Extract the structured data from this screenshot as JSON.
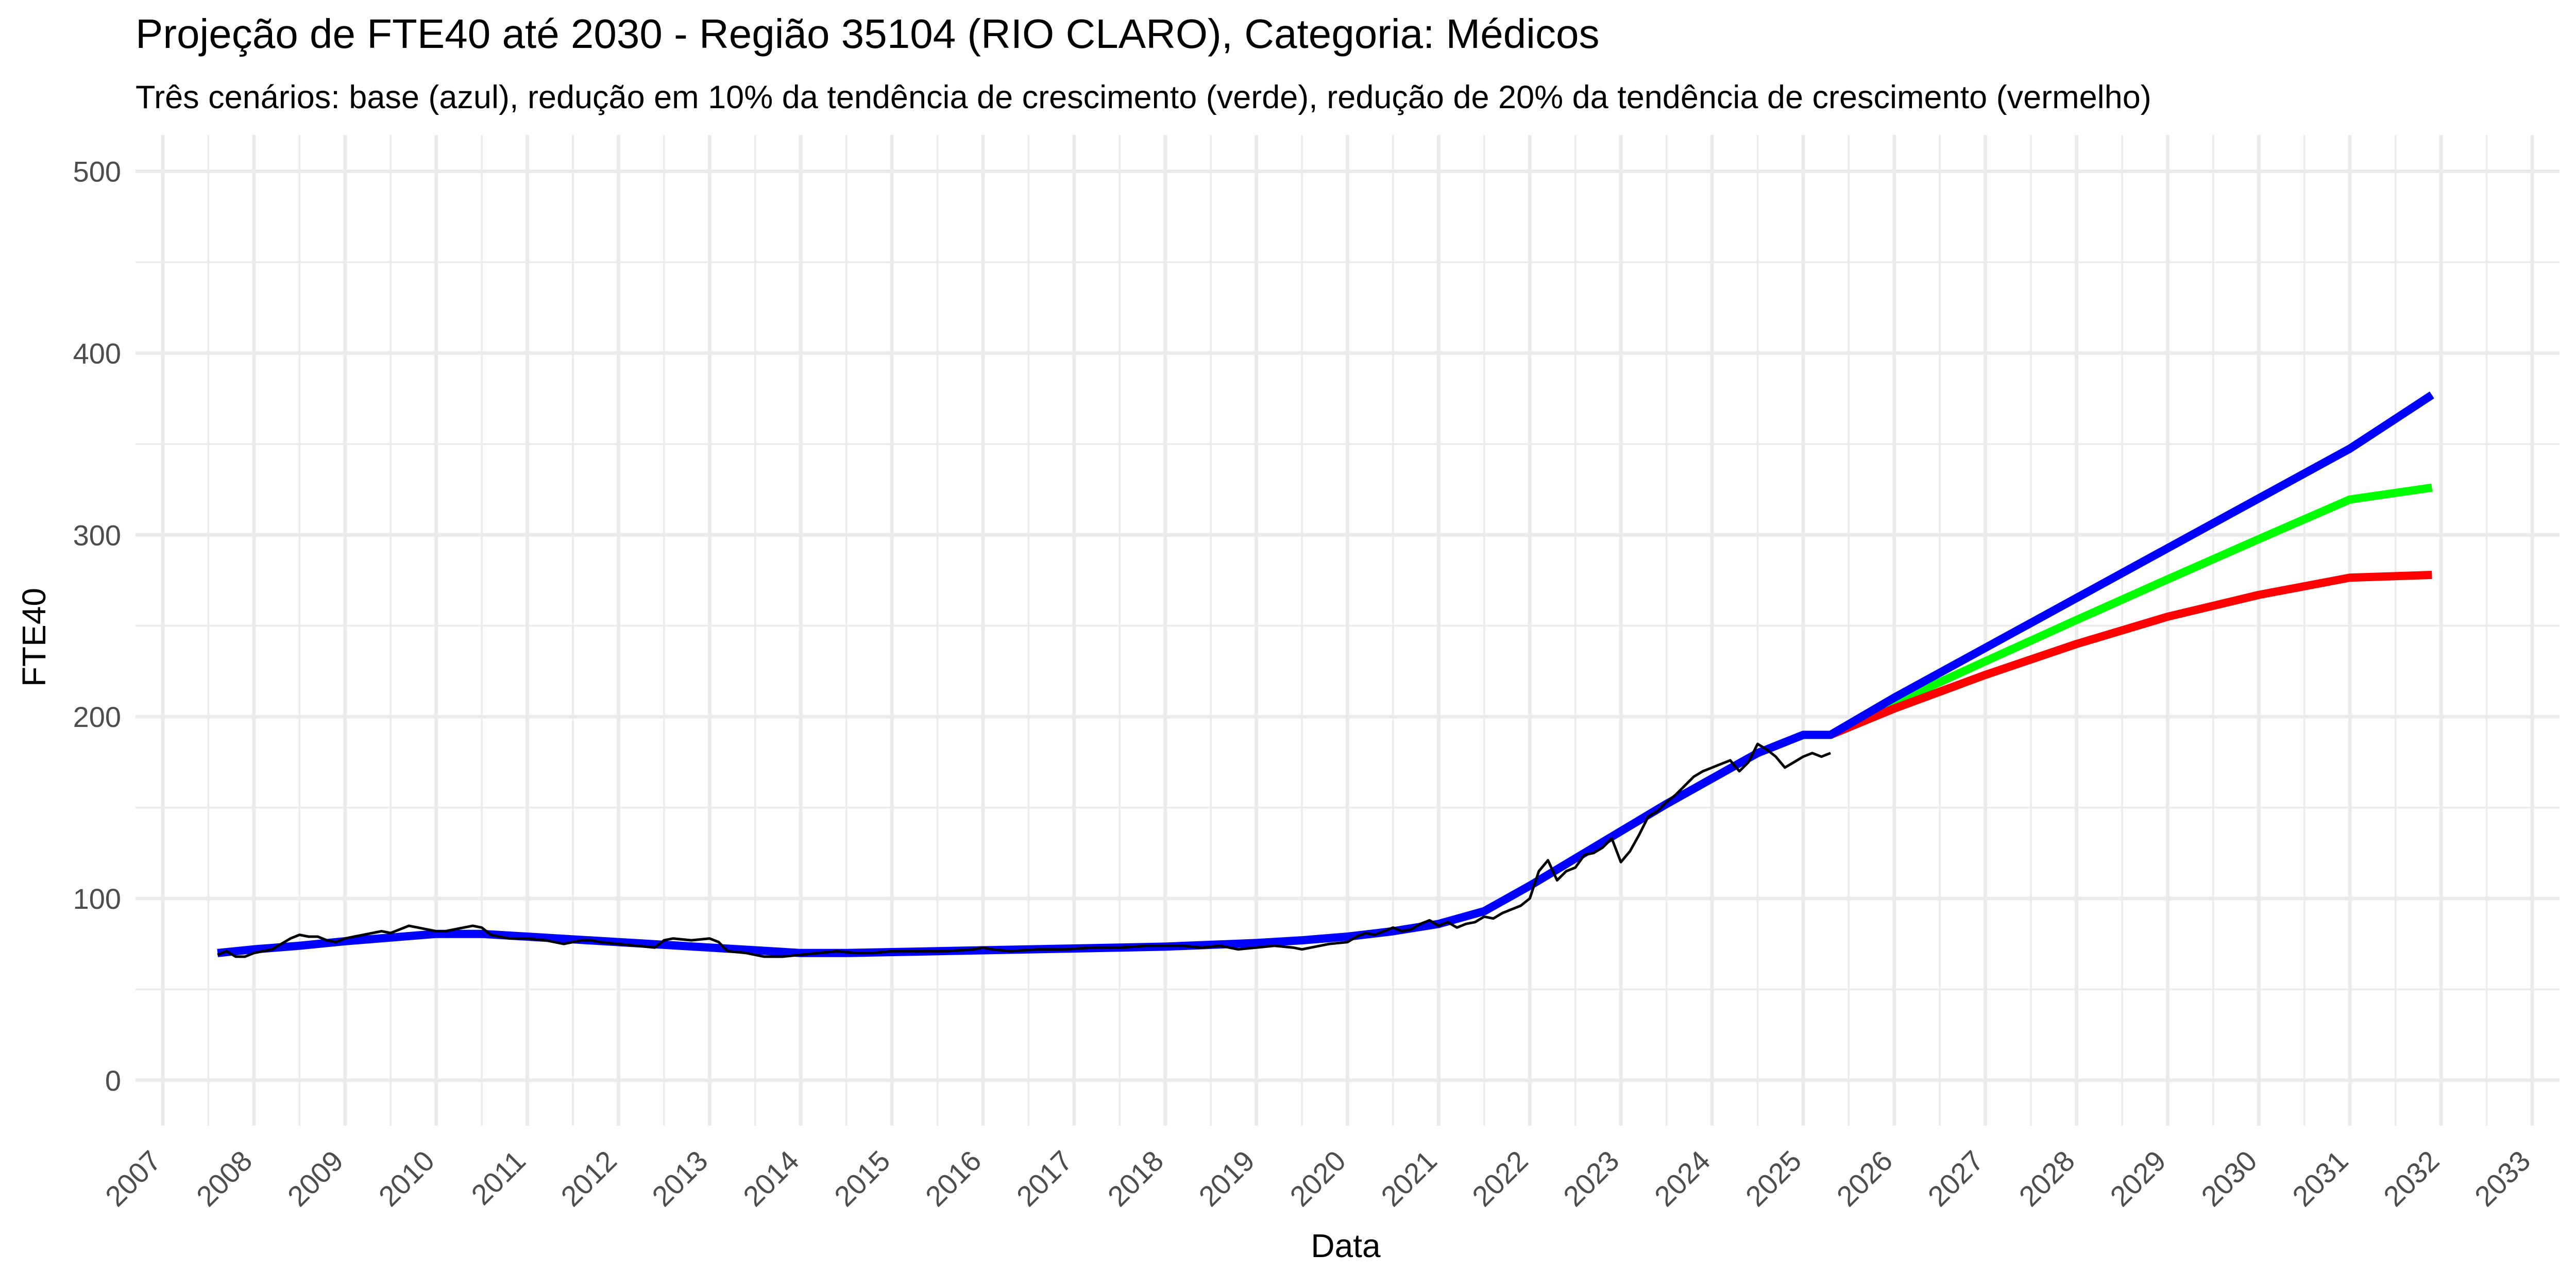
{
  "chart_data": {
    "type": "line",
    "title": "Projeção de FTE40 até 2030 - Região 35104 (RIO CLARO), Categoria: Médicos",
    "subtitle": "Três cenários: base (azul), redução em 10% da tendência de crescimento (verde), redução de 20% da tendência de crescimento (vermelho)",
    "xlabel": "Data",
    "ylabel": "FTE40",
    "xlim": [
      2006.7,
      2033.3
    ],
    "ylim": [
      -25,
      520
    ],
    "grid": true,
    "legend": "none",
    "x_ticks": [
      "2007",
      "2008",
      "2009",
      "2010",
      "2011",
      "2012",
      "2013",
      "2014",
      "2015",
      "2016",
      "2017",
      "2018",
      "2019",
      "2020",
      "2021",
      "2022",
      "2023",
      "2024",
      "2025",
      "2026",
      "2027",
      "2028",
      "2029",
      "2030",
      "2031",
      "2032",
      "2033"
    ],
    "y_ticks": [
      0,
      100,
      200,
      300,
      400,
      500
    ],
    "colors": {
      "observed": "#000000",
      "base": "#0000ff",
      "green": "#00ff00",
      "red": "#ff0000",
      "grid": "#ebebeb",
      "tick_text": "#4d4d4d"
    },
    "series": [
      {
        "x": [
          2007.6,
          2007.7,
          2007.8,
          2007.9,
          2008.0,
          2008.1,
          2008.2,
          2008.3,
          2008.4,
          2008.5,
          2008.6,
          2008.7,
          2008.8,
          2008.9,
          2009.0,
          2009.1,
          2009.2,
          2009.3,
          2009.4,
          2009.5,
          2009.6,
          2009.7,
          2009.8,
          2009.9,
          2010.0,
          2010.1,
          2010.2,
          2010.3,
          2010.4,
          2010.5,
          2010.6,
          2010.7,
          2010.8,
          2010.9,
          2011.0,
          2011.2,
          2011.4,
          2011.5,
          2011.6,
          2011.7,
          2011.8,
          2012.0,
          2012.2,
          2012.4,
          2012.5,
          2012.6,
          2012.8,
          2013.0,
          2013.1,
          2013.2,
          2013.4,
          2013.6,
          2013.8,
          2014.0,
          2014.2,
          2014.4,
          2014.6,
          2014.8,
          2015.0,
          2015.3,
          2015.6,
          2015.9,
          2016.0,
          2016.1,
          2016.3,
          2016.6,
          2016.9,
          2017.2,
          2017.5,
          2017.8,
          2018.0,
          2018.2,
          2018.4,
          2018.6,
          2018.8,
          2019.0,
          2019.2,
          2019.4,
          2019.5,
          2019.6,
          2019.8,
          2020.0,
          2020.1,
          2020.2,
          2020.3,
          2020.4,
          2020.5,
          2020.6,
          2020.7,
          2020.8,
          2020.9,
          2021.0,
          2021.1,
          2021.2,
          2021.3,
          2021.4,
          2021.5,
          2021.6,
          2021.7,
          2021.8,
          2021.9,
          2022.0,
          2022.1,
          2022.2,
          2022.3,
          2022.4,
          2022.5,
          2022.6,
          2022.7,
          2022.8,
          2022.9,
          2023.0,
          2023.1,
          2023.2,
          2023.3,
          2023.4,
          2023.5,
          2023.6,
          2023.7,
          2023.8,
          2023.9,
          2024.0,
          2024.1,
          2024.2,
          2024.3,
          2024.4,
          2024.5,
          2024.6,
          2024.7,
          2024.8,
          2024.9,
          2025.0,
          2025.1,
          2025.2,
          2025.3
        ],
        "values": [
          69,
          71,
          68,
          68,
          70,
          71,
          72,
          75,
          78,
          80,
          79,
          79,
          77,
          76,
          78,
          79,
          80,
          81,
          82,
          81,
          83,
          85,
          84,
          83,
          82,
          82,
          83,
          84,
          85,
          84,
          80,
          79,
          78,
          78,
          78,
          77,
          75,
          76,
          77,
          77,
          76,
          75,
          74,
          73,
          77,
          78,
          77,
          78,
          76,
          71,
          70,
          68,
          68,
          69,
          70,
          71,
          70,
          70,
          71,
          71,
          71,
          72,
          73,
          72,
          71,
          72,
          72,
          73,
          73,
          74,
          74,
          74,
          73,
          74,
          72,
          73,
          74,
          73,
          72,
          73,
          75,
          76,
          79,
          81,
          80,
          82,
          84,
          82,
          83,
          86,
          88,
          85,
          87,
          84,
          86,
          87,
          90,
          89,
          92,
          94,
          96,
          100,
          115,
          121,
          110,
          115,
          117,
          124,
          125,
          128,
          133,
          120,
          126,
          135,
          145,
          148,
          153,
          157,
          162,
          167,
          170,
          172,
          174,
          176,
          170,
          175,
          185,
          182,
          178,
          172,
          175,
          178,
          180,
          178,
          180
        ],
        "color": "#000000"
      },
      {
        "x": [
          2007.6,
          2008.0,
          2008.5,
          2009.0,
          2009.5,
          2010.0,
          2010.5,
          2011.0,
          2011.5,
          2012.0,
          2012.5,
          2013.0,
          2013.5,
          2014.0,
          2014.5,
          2015.0,
          2015.5,
          2016.0,
          2016.5,
          2017.0,
          2017.5,
          2018.0,
          2018.5,
          2019.0,
          2019.5,
          2020.0,
          2020.5,
          2021.0,
          2021.5,
          2022.0,
          2022.5,
          2023.0,
          2023.5,
          2024.0,
          2024.5,
          2025.0,
          2025.3,
          2026,
          2027,
          2028,
          2029,
          2030,
          2031,
          2031.9
        ],
        "values": [
          70,
          72,
          74,
          76.5,
          78.5,
          80.5,
          80.5,
          79,
          77.5,
          76,
          74.5,
          73,
          71.5,
          70,
          70,
          70.5,
          71,
          71.5,
          72,
          72.5,
          73,
          73.5,
          74.5,
          75.5,
          77,
          79,
          82,
          86,
          93,
          107,
          122,
          137,
          152,
          166,
          180,
          190,
          190,
          210.5,
          237.9,
          265.3,
          292.7,
          320.1,
          347.5,
          377
        ],
        "color": "#0000ff"
      },
      {
        "x": [
          2025.3,
          2026,
          2027,
          2028,
          2029,
          2030,
          2031,
          2031.9
        ],
        "values": [
          190,
          207.5,
          230.5,
          253.2,
          275.6,
          297.7,
          319.5,
          326
        ],
        "color": "#00ff00"
      },
      {
        "x": [
          2025.3,
          2026,
          2027,
          2028,
          2029,
          2030,
          2031,
          2031.9
        ],
        "values": [
          190,
          204.5,
          223,
          240,
          255,
          267,
          276.5,
          278
        ],
        "color": "#ff0000"
      }
    ]
  }
}
